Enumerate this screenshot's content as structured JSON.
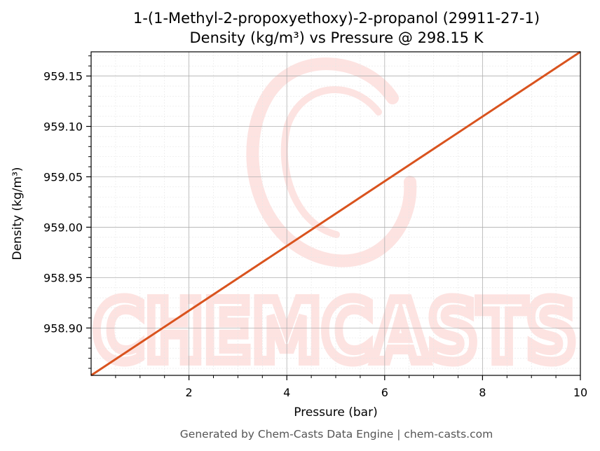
{
  "chart_data": {
    "type": "line",
    "title": "1-(1-Methyl-2-propoxyethoxy)-2-propanol (29911-27-1)",
    "subtitle": "Density (kg/m³) vs Pressure @ 298.15 K",
    "xlabel": "Pressure (bar)",
    "ylabel": "Density (kg/m³)",
    "xlim": [
      0,
      10
    ],
    "ylim": [
      958.853,
      959.174
    ],
    "x_ticks": [
      2,
      4,
      6,
      8,
      10
    ],
    "x_tick_labels": [
      "2",
      "4",
      "6",
      "8",
      "10"
    ],
    "y_ticks": [
      958.9,
      958.95,
      959.0,
      959.05,
      959.1,
      959.15
    ],
    "y_tick_labels": [
      "958.90",
      "958.95",
      "959.00",
      "959.05",
      "959.10",
      "959.15"
    ],
    "grid": true,
    "legend": "none",
    "series": [
      {
        "color": "#d9531e",
        "x": [
          0,
          10
        ],
        "y": [
          958.853,
          959.174
        ]
      }
    ]
  },
  "footer": "Generated by Chem-Casts Data Engine | chem-casts.com",
  "watermark": {
    "text": "CHEMCASTS",
    "color": "#fde3e1"
  }
}
